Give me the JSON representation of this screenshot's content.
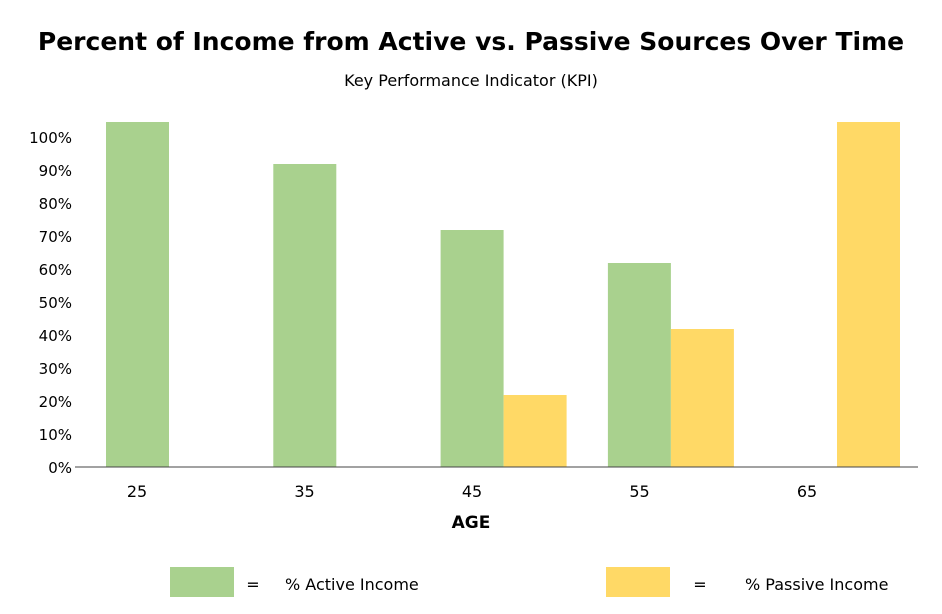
{
  "chart_data": {
    "type": "bar",
    "title": "Percent of Income from Active vs. Passive Sources Over Time",
    "subtitle": "Key Performance Indicator (KPI)",
    "xlabel": "AGE",
    "ylabel": "",
    "categories": [
      "25",
      "35",
      "45",
      "55",
      "65"
    ],
    "ylim": [
      0,
      100
    ],
    "yticks": [
      0,
      10,
      20,
      30,
      40,
      50,
      60,
      70,
      80,
      90,
      100
    ],
    "ytick_labels": [
      "0%",
      "10%",
      "20%",
      "30%",
      "40%",
      "50%",
      "60%",
      "70%",
      "80%",
      "90%",
      "100%"
    ],
    "series": [
      {
        "name": "% Active Income",
        "values": [
          100,
          90,
          70,
          60,
          0
        ],
        "color": "#a9d18e"
      },
      {
        "name": "% Passive Income",
        "values": [
          0,
          0,
          20,
          40,
          100
        ],
        "color": "#ffd966"
      }
    ],
    "grid": false,
    "legend_position": "bottom",
    "legend_separator": "="
  }
}
